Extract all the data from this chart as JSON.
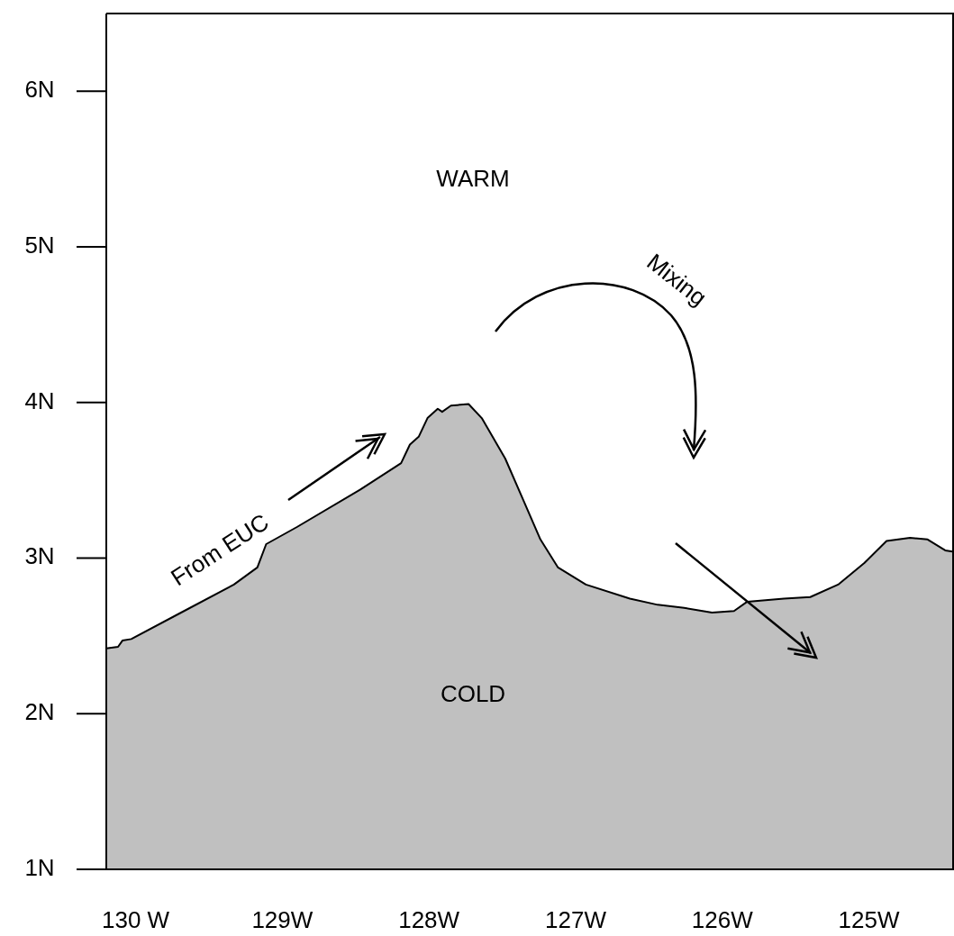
{
  "chart_data": {
    "type": "area",
    "xlim": [
      -130.2,
      -124.42
    ],
    "ylim": [
      1,
      6.5
    ],
    "xticks": [
      {
        "value": -130,
        "label": "130 W"
      },
      {
        "value": -129,
        "label": "129W"
      },
      {
        "value": -128,
        "label": "128W"
      },
      {
        "value": -127,
        "label": "127W"
      },
      {
        "value": -126,
        "label": "126W"
      },
      {
        "value": -125,
        "label": "125W"
      }
    ],
    "yticks": [
      {
        "value": 1,
        "label": "1N"
      },
      {
        "value": 2,
        "label": "2N"
      },
      {
        "value": 3,
        "label": "3N"
      },
      {
        "value": 4,
        "label": "4N"
      },
      {
        "value": 5,
        "label": "5N"
      },
      {
        "value": 6,
        "label": "6N"
      }
    ],
    "x": [
      -130.2,
      -130.12,
      -130.09,
      -130.03,
      -129.69,
      -129.33,
      -129.17,
      -129.11,
      -128.9,
      -128.47,
      -128.19,
      -128.13,
      -128.07,
      -128.01,
      -127.94,
      -127.91,
      -127.85,
      -127.73,
      -127.64,
      -127.48,
      -127.36,
      -127.24,
      -127.12,
      -126.93,
      -126.63,
      -126.44,
      -126.26,
      -126.07,
      -125.92,
      -125.83,
      -125.58,
      -125.4,
      -125.21,
      -125.03,
      -124.88,
      -124.72,
      -124.6,
      -124.48,
      -124.42
    ],
    "series": [
      {
        "color": "#c0c0c0",
        "values": [
          2.42,
          2.43,
          2.47,
          2.48,
          2.65,
          2.83,
          2.94,
          3.09,
          3.2,
          3.44,
          3.61,
          3.73,
          3.78,
          3.9,
          3.96,
          3.94,
          3.98,
          3.99,
          3.9,
          3.64,
          3.38,
          3.12,
          2.94,
          2.83,
          2.74,
          2.7,
          2.68,
          2.65,
          2.66,
          2.72,
          2.74,
          2.75,
          2.83,
          2.97,
          3.11,
          3.13,
          3.12,
          3.05,
          3.04
        ]
      }
    ],
    "annotations": [
      "WARM",
      "COLD",
      "Mixing",
      "From EUC"
    ],
    "grid": false
  }
}
